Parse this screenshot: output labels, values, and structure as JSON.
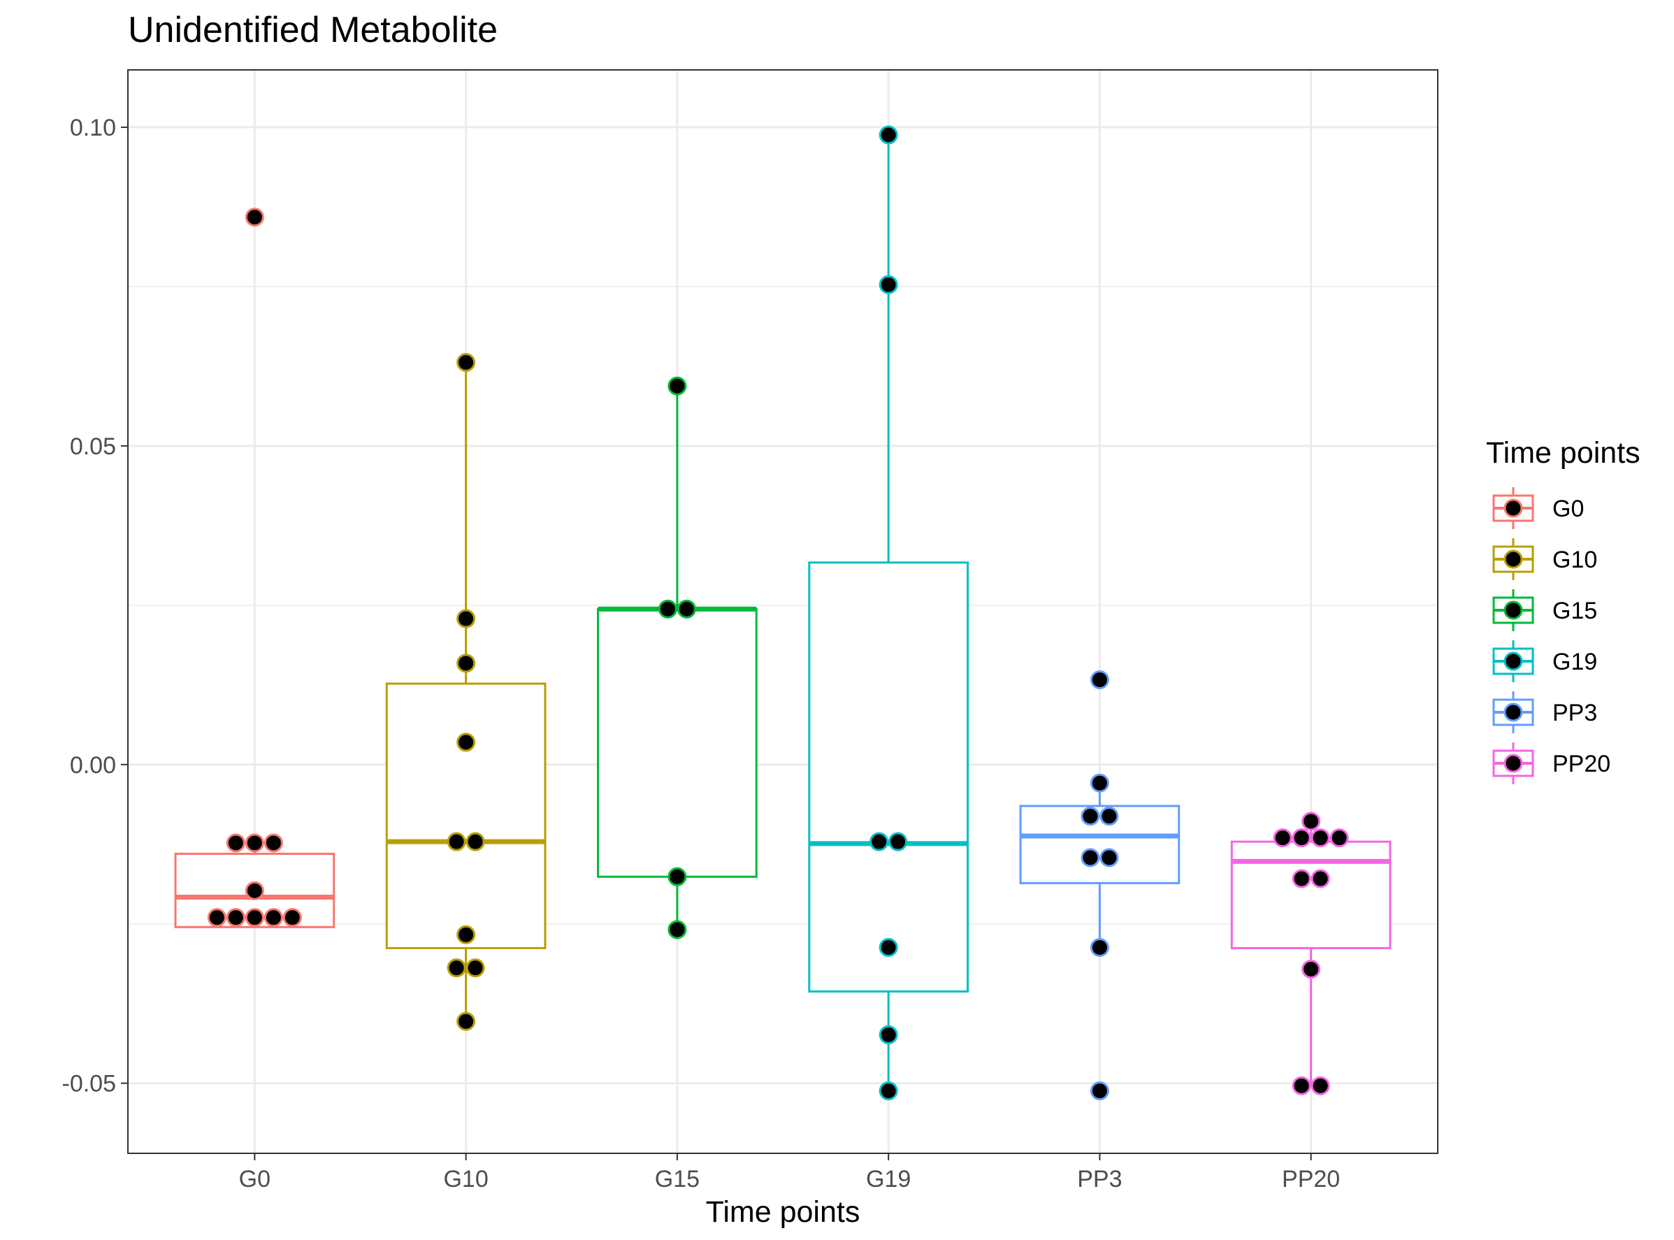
{
  "chart_data": {
    "type": "boxplot",
    "title": "Unidentified Metabolite",
    "xlabel": "Time points",
    "ylabel": "",
    "ylim": [
      -0.061,
      0.109
    ],
    "yticks": [
      -0.05,
      0.0,
      0.05,
      0.1
    ],
    "ytick_labels": [
      "-0.05",
      "0.00",
      "0.05",
      "0.10"
    ],
    "grid": true,
    "legend": {
      "title": "Time points",
      "position": "right"
    },
    "groups": [
      {
        "name": "G0",
        "color": "#F8766D",
        "box": {
          "whisker_low": -0.0255,
          "q1": -0.0255,
          "median": -0.0208,
          "q3": -0.014,
          "whisker_high": -0.0123
        },
        "points": [
          0.0859,
          -0.0123,
          -0.0123,
          -0.0123,
          -0.0198,
          -0.024,
          -0.024,
          -0.024,
          -0.024,
          -0.024
        ],
        "point_offsets": [
          0,
          -1,
          0,
          1,
          0,
          -2,
          -1,
          0,
          1,
          2
        ]
      },
      {
        "name": "G10",
        "color": "#B79F00",
        "box": {
          "whisker_low": -0.0403,
          "q1": -0.0288,
          "median": -0.0121,
          "q3": 0.0127,
          "whisker_high": 0.0631
        },
        "points": [
          0.0631,
          0.0229,
          0.0159,
          0.0035,
          -0.0121,
          -0.0121,
          -0.0267,
          -0.0319,
          -0.0319,
          -0.0403
        ],
        "point_offsets": [
          0,
          0,
          0,
          0,
          -0.5,
          0.5,
          0,
          -0.5,
          0.5,
          0
        ]
      },
      {
        "name": "G15",
        "color": "#00BA38",
        "box": {
          "whisker_low": -0.0259,
          "q1": -0.0176,
          "median": 0.0244,
          "q3": 0.0244,
          "whisker_high": 0.0594
        },
        "points": [
          0.0594,
          0.0244,
          0.0244,
          -0.0176,
          -0.0259
        ],
        "point_offsets": [
          0,
          -0.5,
          0.5,
          0,
          0
        ]
      },
      {
        "name": "G19",
        "color": "#00BFC4",
        "box": {
          "whisker_low": -0.0512,
          "q1": -0.0356,
          "median": -0.0124,
          "q3": 0.0317,
          "whisker_high": 0.0988
        },
        "points": [
          0.0988,
          0.0753,
          -0.0121,
          -0.0121,
          -0.0287,
          -0.0424,
          -0.0512
        ],
        "point_offsets": [
          0,
          0,
          -0.5,
          0.5,
          0,
          0,
          0
        ]
      },
      {
        "name": "PP3",
        "color": "#619CFF",
        "box": {
          "whisker_low": -0.0287,
          "q1": -0.0186,
          "median": -0.0112,
          "q3": -0.0065,
          "whisker_high": -0.0029
        },
        "points": [
          0.0133,
          -0.0029,
          -0.0081,
          -0.0081,
          -0.0146,
          -0.0146,
          -0.0287,
          -0.0512
        ],
        "point_offsets": [
          0,
          0,
          -0.5,
          0.5,
          -0.5,
          0.5,
          0,
          0
        ]
      },
      {
        "name": "PP20",
        "color": "#F564E3",
        "box": {
          "whisker_low": -0.0504,
          "q1": -0.0288,
          "median": -0.0152,
          "q3": -0.0121,
          "whisker_high": -0.0089
        },
        "points": [
          -0.0089,
          -0.0115,
          -0.0115,
          -0.0115,
          -0.0115,
          -0.0179,
          -0.0179,
          -0.0321,
          -0.0504,
          -0.0504
        ],
        "point_offsets": [
          0,
          -1.5,
          -0.5,
          0.5,
          1.5,
          -0.5,
          0.5,
          0,
          -0.5,
          0.5
        ]
      }
    ]
  }
}
